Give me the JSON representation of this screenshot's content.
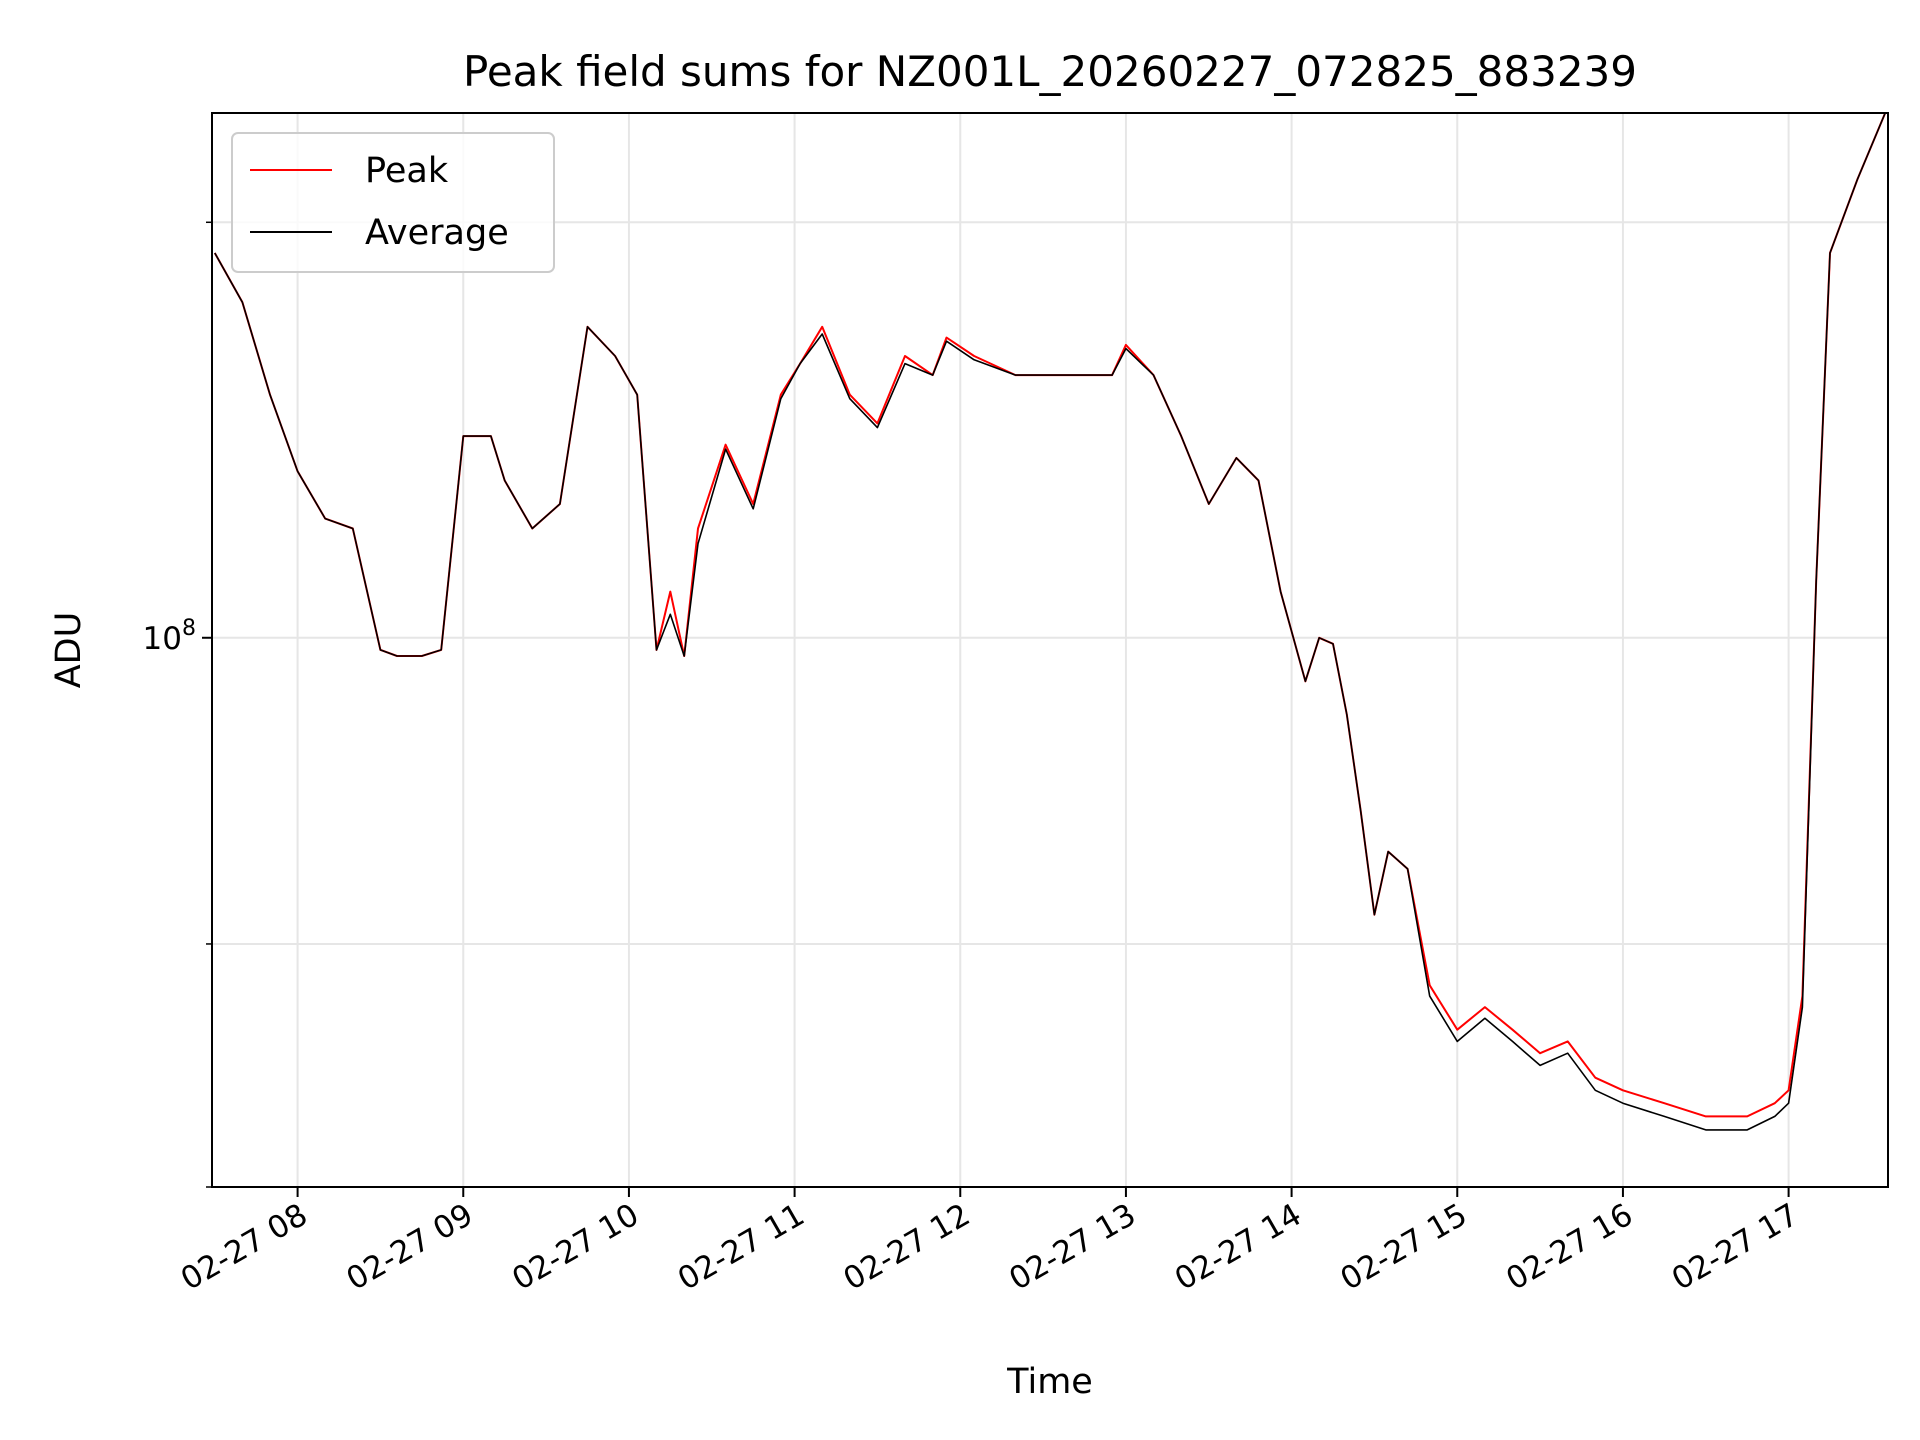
{
  "chart_data": {
    "type": "line",
    "title": "Peak field sums for NZ001L_20260227_072825_883239",
    "xlabel": "Time",
    "ylabel": "ADU",
    "y_scale": "log",
    "y_tick_labels": [
      {
        "base": "10",
        "exp": "8",
        "value": 100000000
      }
    ],
    "ylim": [
      40000000,
      240000000
    ],
    "xlim": [
      "2026-02-27 07:29",
      "2026-02-27 17:36"
    ],
    "x_tick_labels": [
      "02-27 08",
      "02-27 09",
      "02-27 10",
      "02-27 11",
      "02-27 12",
      "02-27 13",
      "02-27 14",
      "02-27 15",
      "02-27 16",
      "02-27 17"
    ],
    "x_ticks": [
      "2026-02-27 08:00",
      "2026-02-27 09:00",
      "2026-02-27 10:00",
      "2026-02-27 11:00",
      "2026-02-27 12:00",
      "2026-02-27 13:00",
      "2026-02-27 14:00",
      "2026-02-27 15:00",
      "2026-02-27 16:00",
      "2026-02-27 17:00"
    ],
    "grid": true,
    "legend_position": "upper-left",
    "colors": {
      "peak": "#ff0000",
      "average": "#000000",
      "grid": "#e6e6e6"
    },
    "x": [
      "2026-02-27 07:30",
      "2026-02-27 07:40",
      "2026-02-27 07:50",
      "2026-02-27 08:00",
      "2026-02-27 08:10",
      "2026-02-27 08:20",
      "2026-02-27 08:30",
      "2026-02-27 08:36",
      "2026-02-27 08:45",
      "2026-02-27 08:52",
      "2026-02-27 09:00",
      "2026-02-27 09:10",
      "2026-02-27 09:15",
      "2026-02-27 09:25",
      "2026-02-27 09:35",
      "2026-02-27 09:45",
      "2026-02-27 09:55",
      "2026-02-27 10:03",
      "2026-02-27 10:10",
      "2026-02-27 10:15",
      "2026-02-27 10:20",
      "2026-02-27 10:25",
      "2026-02-27 10:35",
      "2026-02-27 10:45",
      "2026-02-27 10:55",
      "2026-02-27 11:02",
      "2026-02-27 11:10",
      "2026-02-27 11:20",
      "2026-02-27 11:30",
      "2026-02-27 11:40",
      "2026-02-27 11:50",
      "2026-02-27 11:55",
      "2026-02-27 12:05",
      "2026-02-27 12:20",
      "2026-02-27 12:40",
      "2026-02-27 12:55",
      "2026-02-27 13:00",
      "2026-02-27 13:10",
      "2026-02-27 13:20",
      "2026-02-27 13:30",
      "2026-02-27 13:40",
      "2026-02-27 13:48",
      "2026-02-27 13:56",
      "2026-02-27 14:05",
      "2026-02-27 14:10",
      "2026-02-27 14:15",
      "2026-02-27 14:20",
      "2026-02-27 14:25",
      "2026-02-27 14:30",
      "2026-02-27 14:35",
      "2026-02-27 14:42",
      "2026-02-27 14:50",
      "2026-02-27 15:00",
      "2026-02-27 15:10",
      "2026-02-27 15:20",
      "2026-02-27 15:30",
      "2026-02-27 15:40",
      "2026-02-27 15:50",
      "2026-02-27 16:00",
      "2026-02-27 16:15",
      "2026-02-27 16:30",
      "2026-02-27 16:45",
      "2026-02-27 16:55",
      "2026-02-27 17:00",
      "2026-02-27 17:05",
      "2026-02-27 17:10",
      "2026-02-27 17:15",
      "2026-02-27 17:25",
      "2026-02-27 17:35"
    ],
    "series": [
      {
        "name": "Peak",
        "values": [
          190000000,
          175000000,
          150000000,
          132000000,
          122000000,
          120000000,
          98000000,
          97000000,
          97000000,
          98000000,
          140000000,
          140000000,
          130000000,
          120000000,
          125000000,
          168000000,
          160000000,
          150000000,
          98000000,
          108000000,
          97000000,
          120000000,
          138000000,
          125000000,
          150000000,
          158000000,
          168000000,
          150000000,
          143000000,
          160000000,
          155000000,
          165000000,
          160000000,
          155000000,
          155000000,
          155000000,
          163000000,
          155000000,
          140000000,
          125000000,
          135000000,
          130000000,
          108000000,
          93000000,
          100000000,
          99000000,
          88000000,
          75000000,
          63000000,
          70000000,
          68000000,
          56000000,
          52000000,
          54000000,
          52000000,
          50000000,
          51000000,
          48000000,
          47000000,
          46000000,
          45000000,
          45000000,
          46000000,
          47000000,
          55000000,
          110000000,
          190000000,
          215000000,
          240000000
        ]
      },
      {
        "name": "Average",
        "values": [
          190000000,
          175000000,
          150000000,
          132000000,
          122000000,
          120000000,
          98000000,
          97000000,
          97000000,
          98000000,
          140000000,
          140000000,
          130000000,
          120000000,
          125000000,
          168000000,
          160000000,
          150000000,
          98000000,
          104000000,
          97000000,
          117000000,
          137000000,
          124000000,
          149000000,
          158000000,
          166000000,
          149000000,
          142000000,
          158000000,
          155000000,
          164000000,
          159000000,
          155000000,
          155000000,
          155000000,
          162000000,
          155000000,
          140000000,
          125000000,
          135000000,
          130000000,
          108000000,
          93000000,
          100000000,
          99000000,
          88000000,
          75000000,
          63000000,
          70000000,
          68000000,
          55000000,
          51000000,
          53000000,
          51000000,
          49000000,
          50000000,
          47000000,
          46000000,
          45000000,
          44000000,
          44000000,
          45000000,
          46000000,
          54000000,
          110000000,
          190000000,
          215000000,
          240000000
        ]
      }
    ]
  }
}
